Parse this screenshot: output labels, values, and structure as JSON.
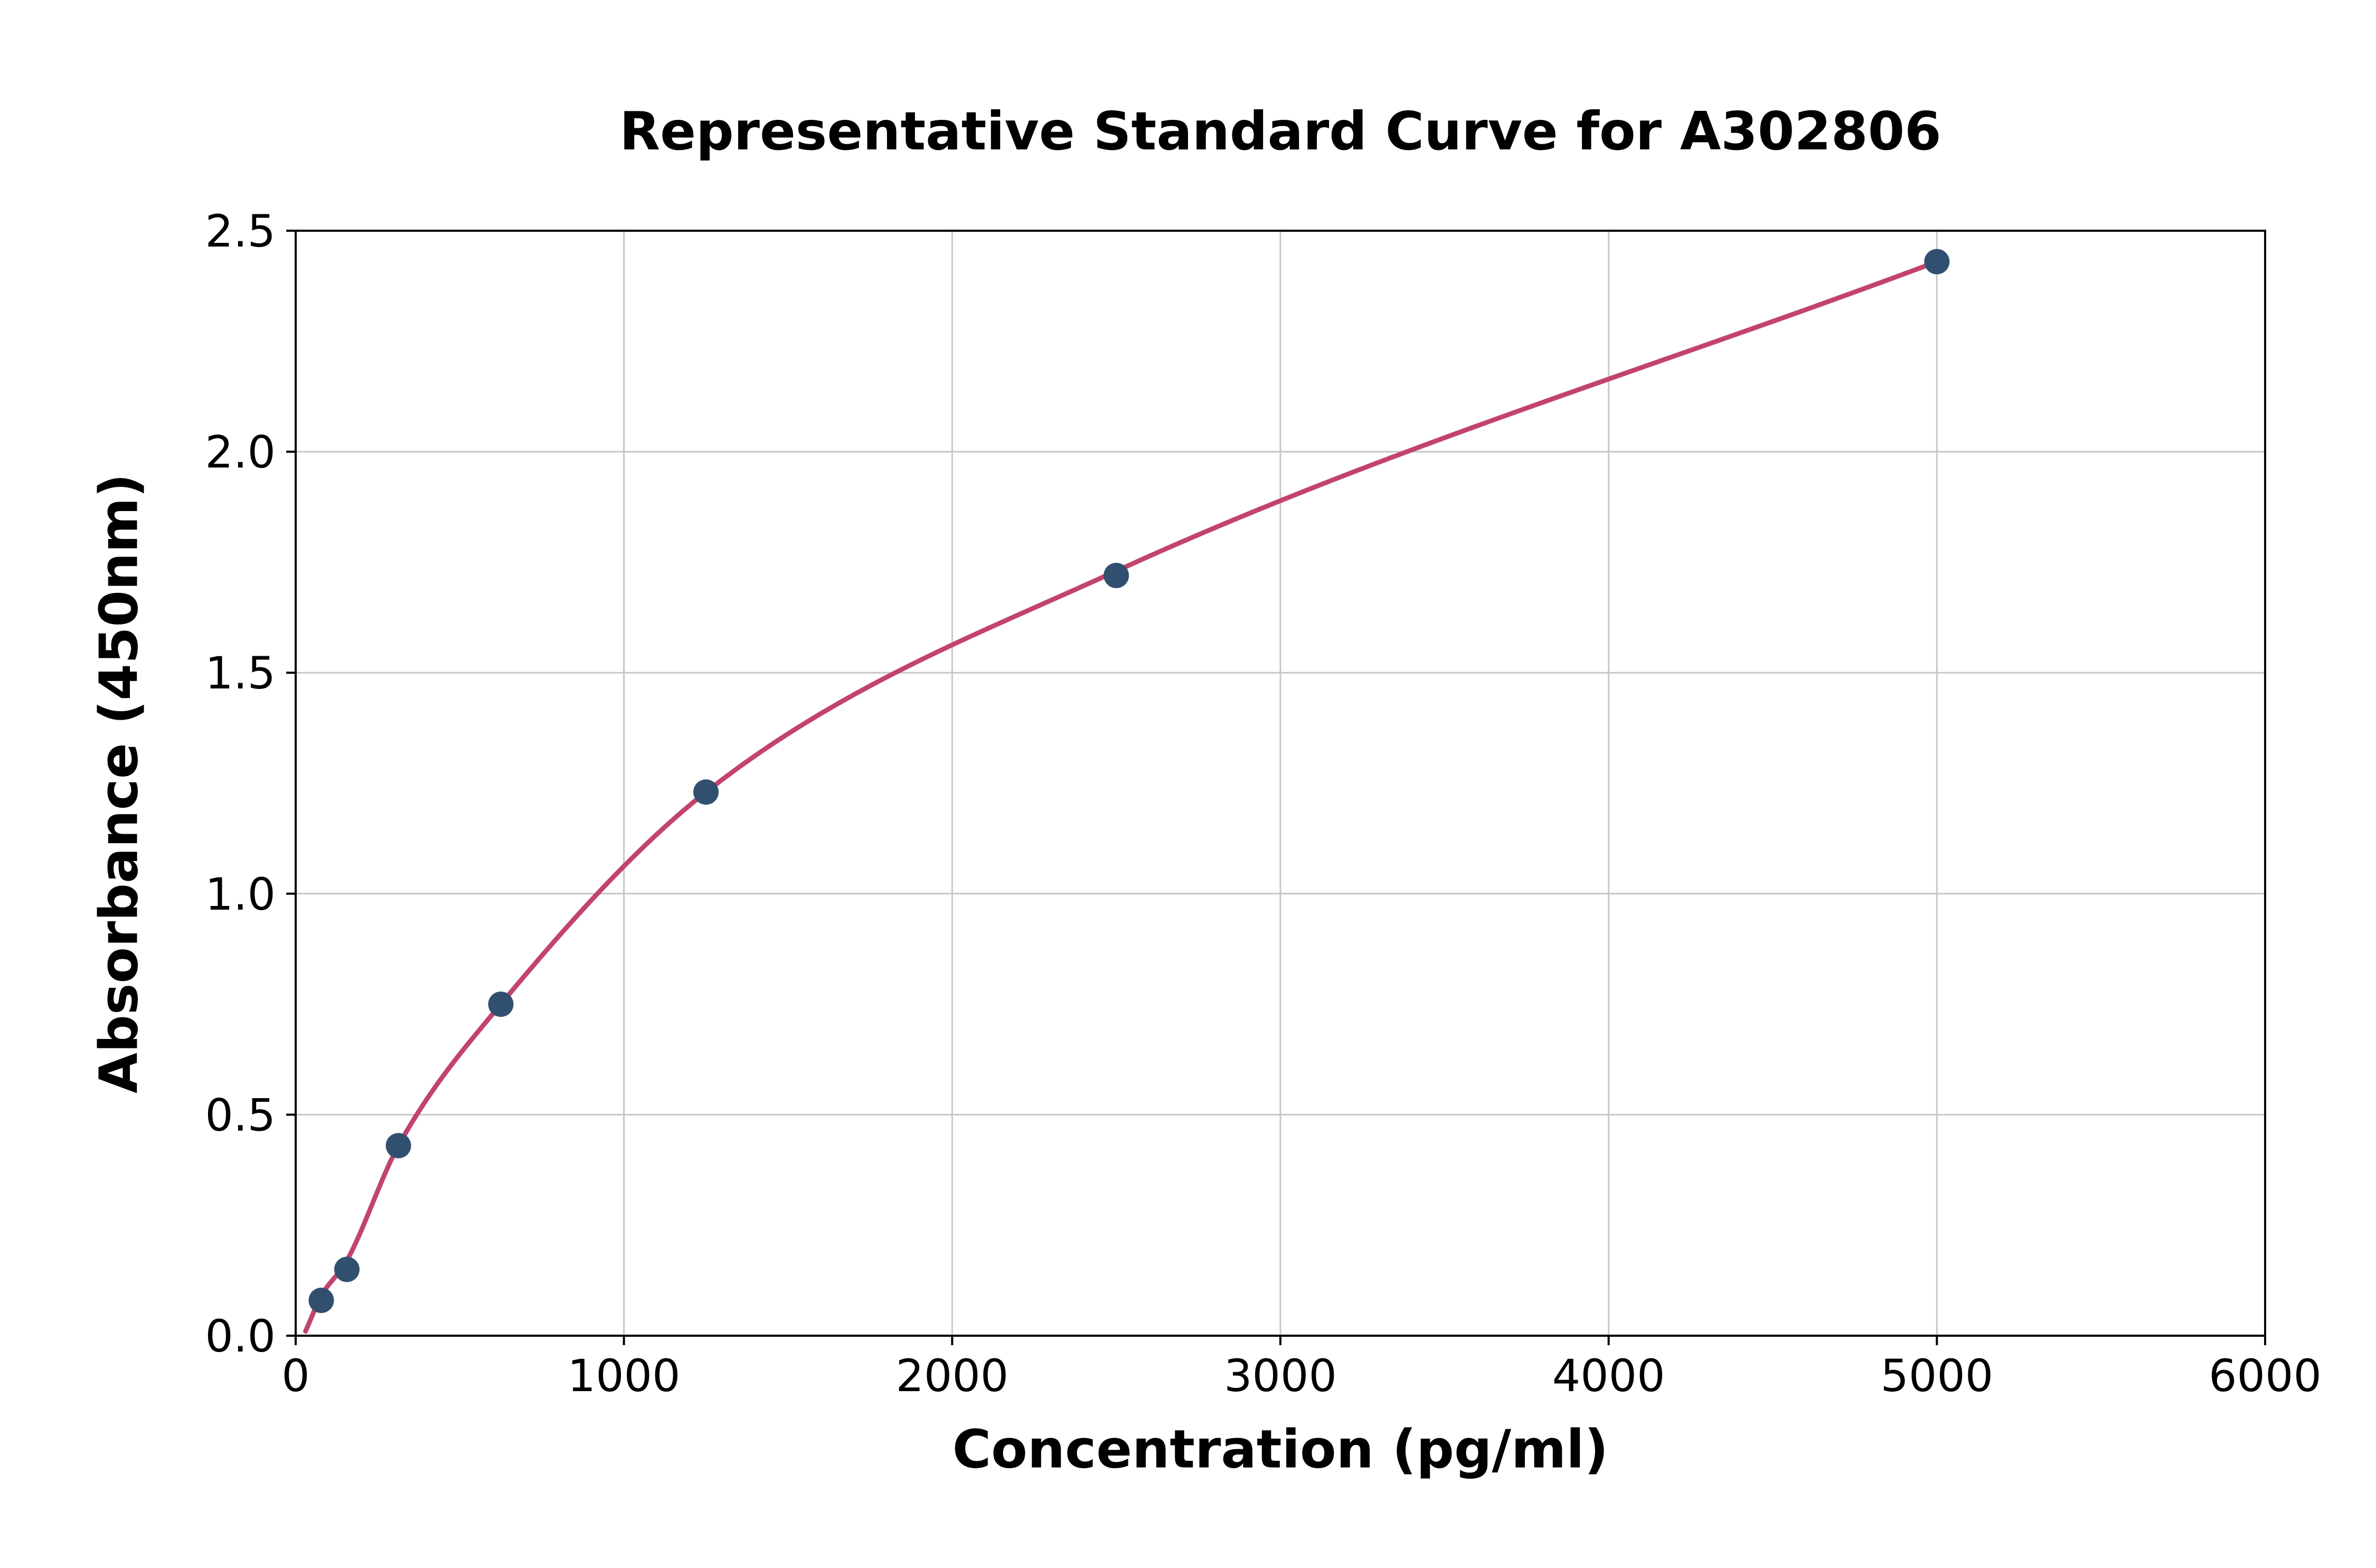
{
  "chart_data": {
    "type": "scatter",
    "title": "Representative Standard Curve for A302806",
    "xlabel": "Concentration (pg/ml)",
    "ylabel": "Absorbance (450nm)",
    "xlim": [
      0,
      6000
    ],
    "ylim": [
      0,
      2.5
    ],
    "x_ticks": [
      0,
      1000,
      2000,
      3000,
      4000,
      5000,
      6000
    ],
    "x_tick_labels": [
      "0",
      "1000",
      "2000",
      "3000",
      "4000",
      "5000",
      "6000"
    ],
    "y_ticks": [
      0.0,
      0.5,
      1.0,
      1.5,
      2.0,
      2.5
    ],
    "y_tick_labels": [
      "0.0",
      "0.5",
      "1.0",
      "1.5",
      "2.0",
      "2.5"
    ],
    "grid": true,
    "legend": "none",
    "series": [
      {
        "name": "standard-points",
        "type": "scatter",
        "x": [
          78,
          156,
          313,
          625,
          1250,
          2500,
          5000
        ],
        "y": [
          0.08,
          0.15,
          0.43,
          0.75,
          1.23,
          1.72,
          2.43
        ]
      },
      {
        "name": "fitted-curve",
        "type": "line",
        "x": [
          30,
          78,
          156,
          313,
          625,
          1250,
          2500,
          5000
        ],
        "y": [
          0.01,
          0.09,
          0.17,
          0.43,
          0.75,
          1.23,
          1.73,
          2.43
        ]
      }
    ],
    "colors": {
      "point": "#31506f",
      "curve": "#c2436e",
      "grid": "#c7c7c7",
      "axis": "#000000",
      "background": "#ffffff"
    }
  }
}
